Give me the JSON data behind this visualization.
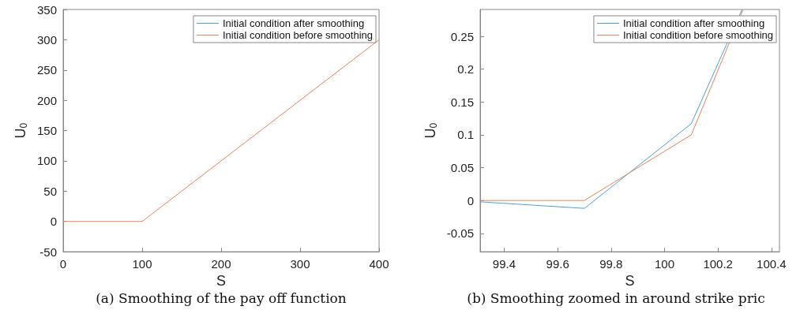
{
  "chart_data": [
    {
      "type": "line",
      "xlabel": "S",
      "ylabel": "U$_{0}$",
      "xlim": [
        0,
        400
      ],
      "xticks": [
        0,
        100,
        200,
        300,
        400
      ],
      "ylim": [
        -50,
        350
      ],
      "yticks": [
        -50,
        0,
        50,
        100,
        150,
        200,
        250,
        300,
        350
      ],
      "grid": false,
      "legend": "top right",
      "marker": "none",
      "line_style": "solid",
      "x": [
        0,
        100,
        400
      ],
      "annotations": [
        "(a) Smoothing of the pay off function"
      ],
      "series": [
        {
          "name": "Initial condition after smoothing",
          "color": "#4a9fdc",
          "values": [
            null,
            null,
            null
          ]
        },
        {
          "name": "Initial condition before smoothing",
          "color": "#e8825a",
          "values": [
            0,
            0,
            300
          ]
        }
      ]
    },
    {
      "type": "line",
      "xlabel": "S",
      "ylabel": "U$_{0}$",
      "xlim": [
        99.31,
        100.43
      ],
      "xticks": [
        99.4,
        99.6,
        99.8,
        100,
        100.2,
        100.4
      ],
      "ylim": [
        -0.078,
        0.291
      ],
      "yticks": [
        -0.05,
        0,
        0.05,
        0.1,
        0.15,
        0.2,
        0.25
      ],
      "grid": false,
      "legend": "top right",
      "marker": "none",
      "line_style": "solid",
      "annotations": [
        "(b) Smoothing zoomed in around strike pric"
      ],
      "series": [
        {
          "name": "Initial condition after smoothing",
          "color": "#4a9fdc",
          "x": [
            99.31,
            99.7,
            100.1,
            100.289
          ],
          "values": [
            -0.002,
            -0.012,
            0.117,
            0.29
          ]
        },
        {
          "name": "Initial condition before smoothing",
          "color": "#e8825a",
          "x": [
            99.31,
            99.7,
            100.1,
            100.293
          ],
          "values": [
            0,
            0,
            0.1,
            0.29
          ]
        }
      ]
    }
  ]
}
